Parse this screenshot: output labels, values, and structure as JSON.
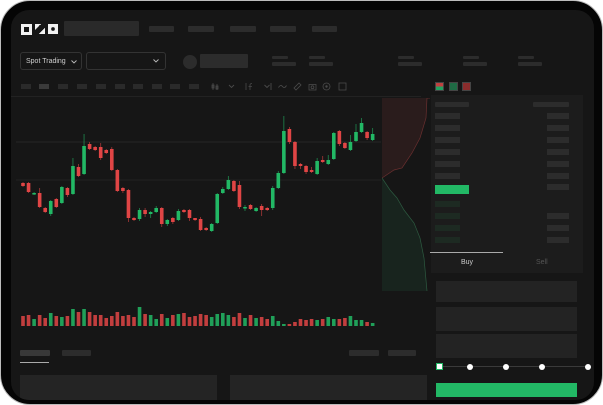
{
  "header": {
    "logo": "OKX"
  },
  "toolbar": {
    "market_select": "Spot Trading"
  },
  "trade": {
    "buy_tab": "Buy",
    "sell_tab": "Sell"
  },
  "colors": {
    "up": "#22b865",
    "down": "#e04545",
    "background": "#161616",
    "accent": "#22b865"
  },
  "icons": [
    "chevron-down-icon",
    "candlestick-icon",
    "indicator-icon",
    "line-icon",
    "ruler-icon",
    "camera-icon",
    "settings-icon",
    "fullscreen-icon",
    "orderbook-both-icon",
    "orderbook-bids-icon",
    "orderbook-asks-icon"
  ],
  "slider": {
    "value_percent": 0,
    "stops": [
      0,
      25,
      50,
      75,
      100
    ]
  },
  "chart_data": {
    "type": "candlestick",
    "title": "",
    "xlabel": "",
    "ylabel": "",
    "grid": true,
    "ohlc": [
      [
        68,
        69,
        64,
        65
      ],
      [
        68,
        69,
        58,
        59
      ],
      [
        57,
        59,
        56,
        58
      ],
      [
        58,
        63,
        43,
        44
      ],
      [
        43,
        44,
        38,
        39
      ],
      [
        37,
        51,
        35,
        50
      ],
      [
        52,
        53,
        43,
        44
      ],
      [
        48,
        65,
        47,
        64
      ],
      [
        63,
        64,
        54,
        56
      ],
      [
        57,
        93,
        56,
        85
      ],
      [
        84,
        87,
        74,
        75
      ],
      [
        77,
        117,
        76,
        105
      ],
      [
        107,
        109,
        101,
        102
      ],
      [
        104,
        105,
        100,
        101
      ],
      [
        104,
        108,
        91,
        93
      ],
      [
        101,
        102,
        97,
        98
      ],
      [
        102,
        104,
        80,
        81
      ],
      [
        81,
        82,
        59,
        60
      ],
      [
        63,
        64,
        58,
        60
      ],
      [
        61,
        62,
        29,
        33
      ],
      [
        33,
        34,
        30,
        31
      ],
      [
        32,
        43,
        30,
        41
      ],
      [
        41,
        43,
        34,
        37
      ],
      [
        37,
        40,
        33,
        39
      ],
      [
        39,
        45,
        38,
        43
      ],
      [
        43,
        44,
        24,
        27
      ],
      [
        27,
        32,
        25,
        31
      ],
      [
        33,
        34,
        27,
        29
      ],
      [
        31,
        42,
        30,
        40
      ],
      [
        41,
        42,
        38,
        39
      ],
      [
        41,
        42,
        30,
        33
      ],
      [
        33,
        33,
        30,
        31
      ],
      [
        32,
        34,
        20,
        21
      ],
      [
        23,
        24,
        20,
        21
      ],
      [
        20,
        28,
        19,
        27
      ],
      [
        28,
        58,
        27,
        57
      ],
      [
        58,
        64,
        57,
        62
      ],
      [
        62,
        75,
        61,
        71
      ],
      [
        70,
        71,
        59,
        60
      ],
      [
        66,
        70,
        42,
        44
      ],
      [
        43,
        46,
        40,
        44
      ],
      [
        46,
        47,
        41,
        42
      ],
      [
        40,
        44,
        39,
        43
      ],
      [
        45,
        47,
        35,
        41
      ],
      [
        43,
        44,
        40,
        41
      ],
      [
        43,
        65,
        41,
        63
      ],
      [
        63,
        80,
        62,
        78
      ],
      [
        78,
        135,
        77,
        120
      ],
      [
        122,
        124,
        107,
        109
      ],
      [
        109,
        110,
        82,
        85
      ],
      [
        87,
        88,
        82,
        85
      ],
      [
        85,
        86,
        77,
        79
      ],
      [
        81,
        84,
        78,
        79
      ],
      [
        77,
        93,
        76,
        90
      ],
      [
        91,
        95,
        88,
        89
      ],
      [
        87,
        96,
        86,
        91
      ],
      [
        92,
        119,
        91,
        118
      ],
      [
        120,
        121,
        105,
        107
      ],
      [
        108,
        109,
        102,
        103
      ],
      [
        101,
        116,
        100,
        109
      ],
      [
        110,
        127,
        109,
        119
      ],
      [
        119,
        133,
        118,
        128
      ],
      [
        119,
        120,
        111,
        113
      ],
      [
        111,
        123,
        110,
        117
      ]
    ],
    "volume": [
      10,
      11,
      7,
      11,
      8,
      13,
      10,
      9,
      10,
      17,
      14,
      17,
      14,
      11,
      11,
      8,
      10,
      14,
      10,
      11,
      9,
      19,
      12,
      11,
      7,
      12,
      8,
      11,
      12,
      13,
      9,
      10,
      12,
      11,
      9,
      12,
      13,
      11,
      9,
      13,
      8,
      11,
      8,
      9,
      7,
      10,
      5,
      2,
      2,
      4,
      7,
      6,
      7,
      6,
      7,
      9,
      7,
      7,
      8,
      10,
      6,
      6,
      4,
      3
    ]
  }
}
